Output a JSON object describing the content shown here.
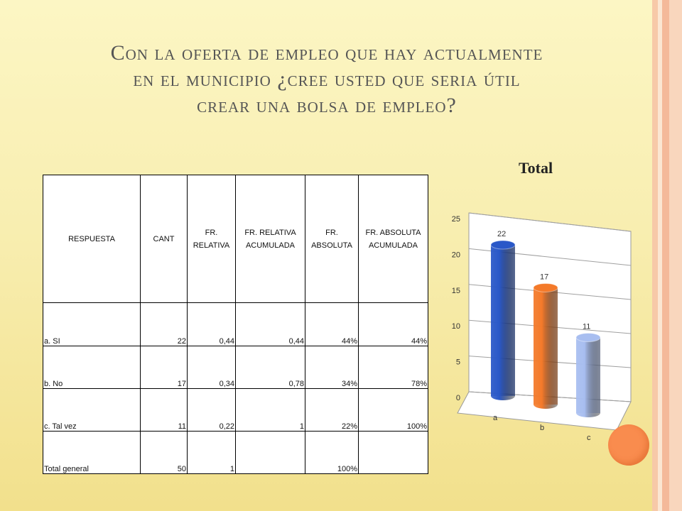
{
  "slide": {
    "title_lines": [
      "Con la oferta de empleo que hay actualmente",
      "en el municipio ¿cree usted que seria útil",
      "crear una bolsa de empleo?"
    ]
  },
  "table": {
    "headers": [
      "RESPUESTA",
      "CANT",
      "FR. RELATIVA",
      "FR. RELATIVA ACUMULADA",
      "FR. ABSOLUTA",
      "FR. ABSOLUTA ACUMULADA"
    ],
    "rows": [
      [
        "a. SI",
        "22",
        "0,44",
        "0,44",
        "44%",
        "44%"
      ],
      [
        "b. No",
        "17",
        "0,34",
        "0,78",
        "34%",
        "78%"
      ],
      [
        "c. Tal vez",
        "11",
        "0,22",
        "1",
        "22%",
        "100%"
      ],
      [
        "Total general",
        "50",
        "1",
        "",
        "100%",
        ""
      ]
    ]
  },
  "chart_data": {
    "type": "bar",
    "title": "Total",
    "categories": [
      "a",
      "b",
      "c"
    ],
    "values": [
      22,
      17,
      11
    ],
    "data_labels": [
      "22",
      "17",
      "11"
    ],
    "colors": [
      "#2a58c8",
      "#f47a2a",
      "#a8bef0"
    ],
    "yticks": [
      "0",
      "5",
      "10",
      "15",
      "20",
      "25"
    ],
    "ylim": [
      0,
      25
    ],
    "grid": true,
    "legend": "none",
    "style": "3d-cylinder"
  },
  "colors": {
    "background_top": "#fcf6c4",
    "background_bottom": "#f2e08c",
    "accent_circle": "#f98c4e"
  }
}
